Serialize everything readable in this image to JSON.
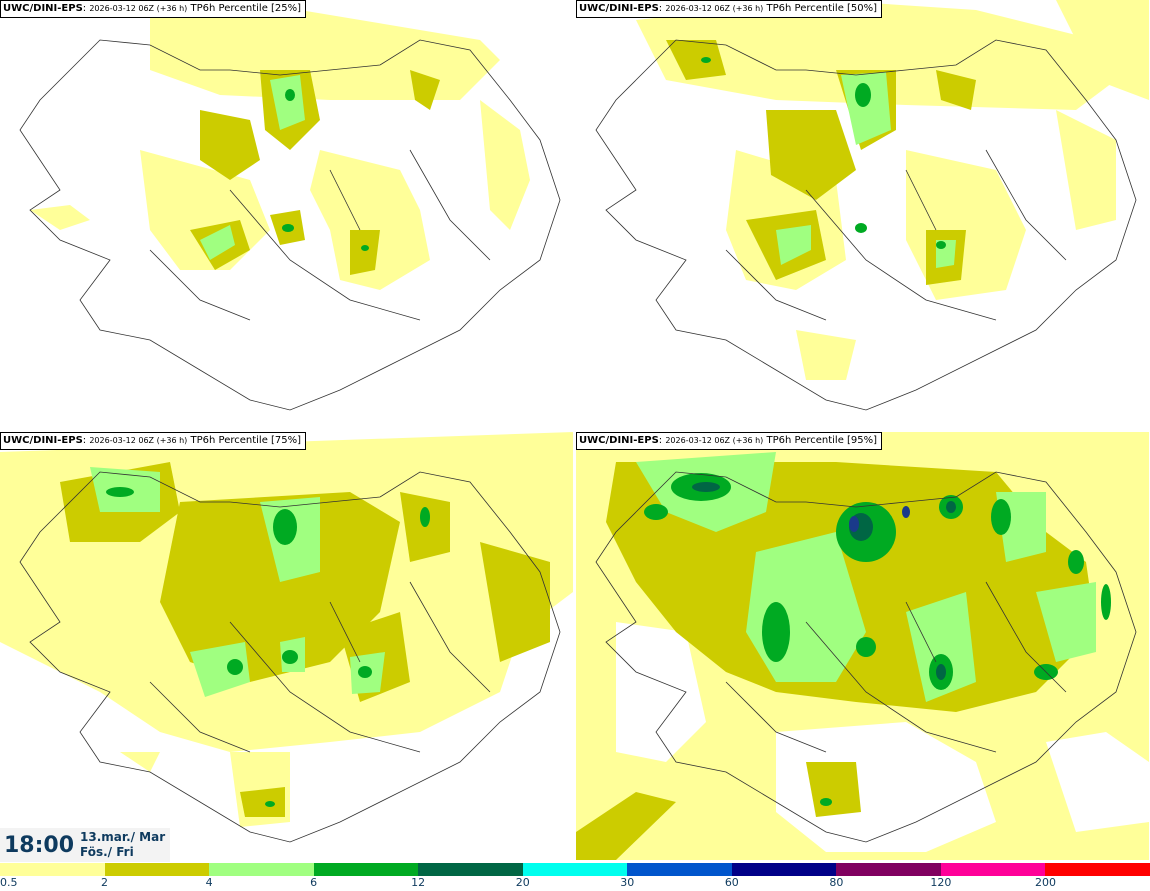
{
  "panels": [
    {
      "model": "UWC/DINI-EPS",
      "run": "2026-03-12 06Z (+36 h)",
      "product": "TP6h Percentile [25%]"
    },
    {
      "model": "UWC/DINI-EPS",
      "run": "2026-03-12 06Z (+36 h)",
      "product": "TP6h Percentile [50%]"
    },
    {
      "model": "UWC/DINI-EPS",
      "run": "2026-03-12 06Z (+36 h)",
      "product": "TP6h Percentile [75%]"
    },
    {
      "model": "UWC/DINI-EPS",
      "run": "2026-03-12 06Z (+36 h)",
      "product": "TP6h Percentile [95%]"
    }
  ],
  "valid_time": {
    "clock": "18:00",
    "date_line1": "13.mar./ Mar",
    "date_line2": "Fös./ Fri"
  },
  "legend": {
    "labels": [
      "0.5",
      "2",
      "4",
      "6",
      "12",
      "20",
      "30",
      "60",
      "80",
      "120",
      "200"
    ],
    "colors": [
      "#ffff99",
      "#cccc00",
      "#a0ff80",
      "#00aa22",
      "#006644",
      "#00ffee",
      "#0055cc",
      "#000088",
      "#800060",
      "#ff0099",
      "#ff0000"
    ]
  },
  "shading_colors": {
    "light": "#ffff99",
    "olive": "#cccc00",
    "lightgreen": "#a0ff80",
    "green": "#00aa22",
    "darkgreen": "#006644",
    "blue": "#1a3a8a"
  }
}
